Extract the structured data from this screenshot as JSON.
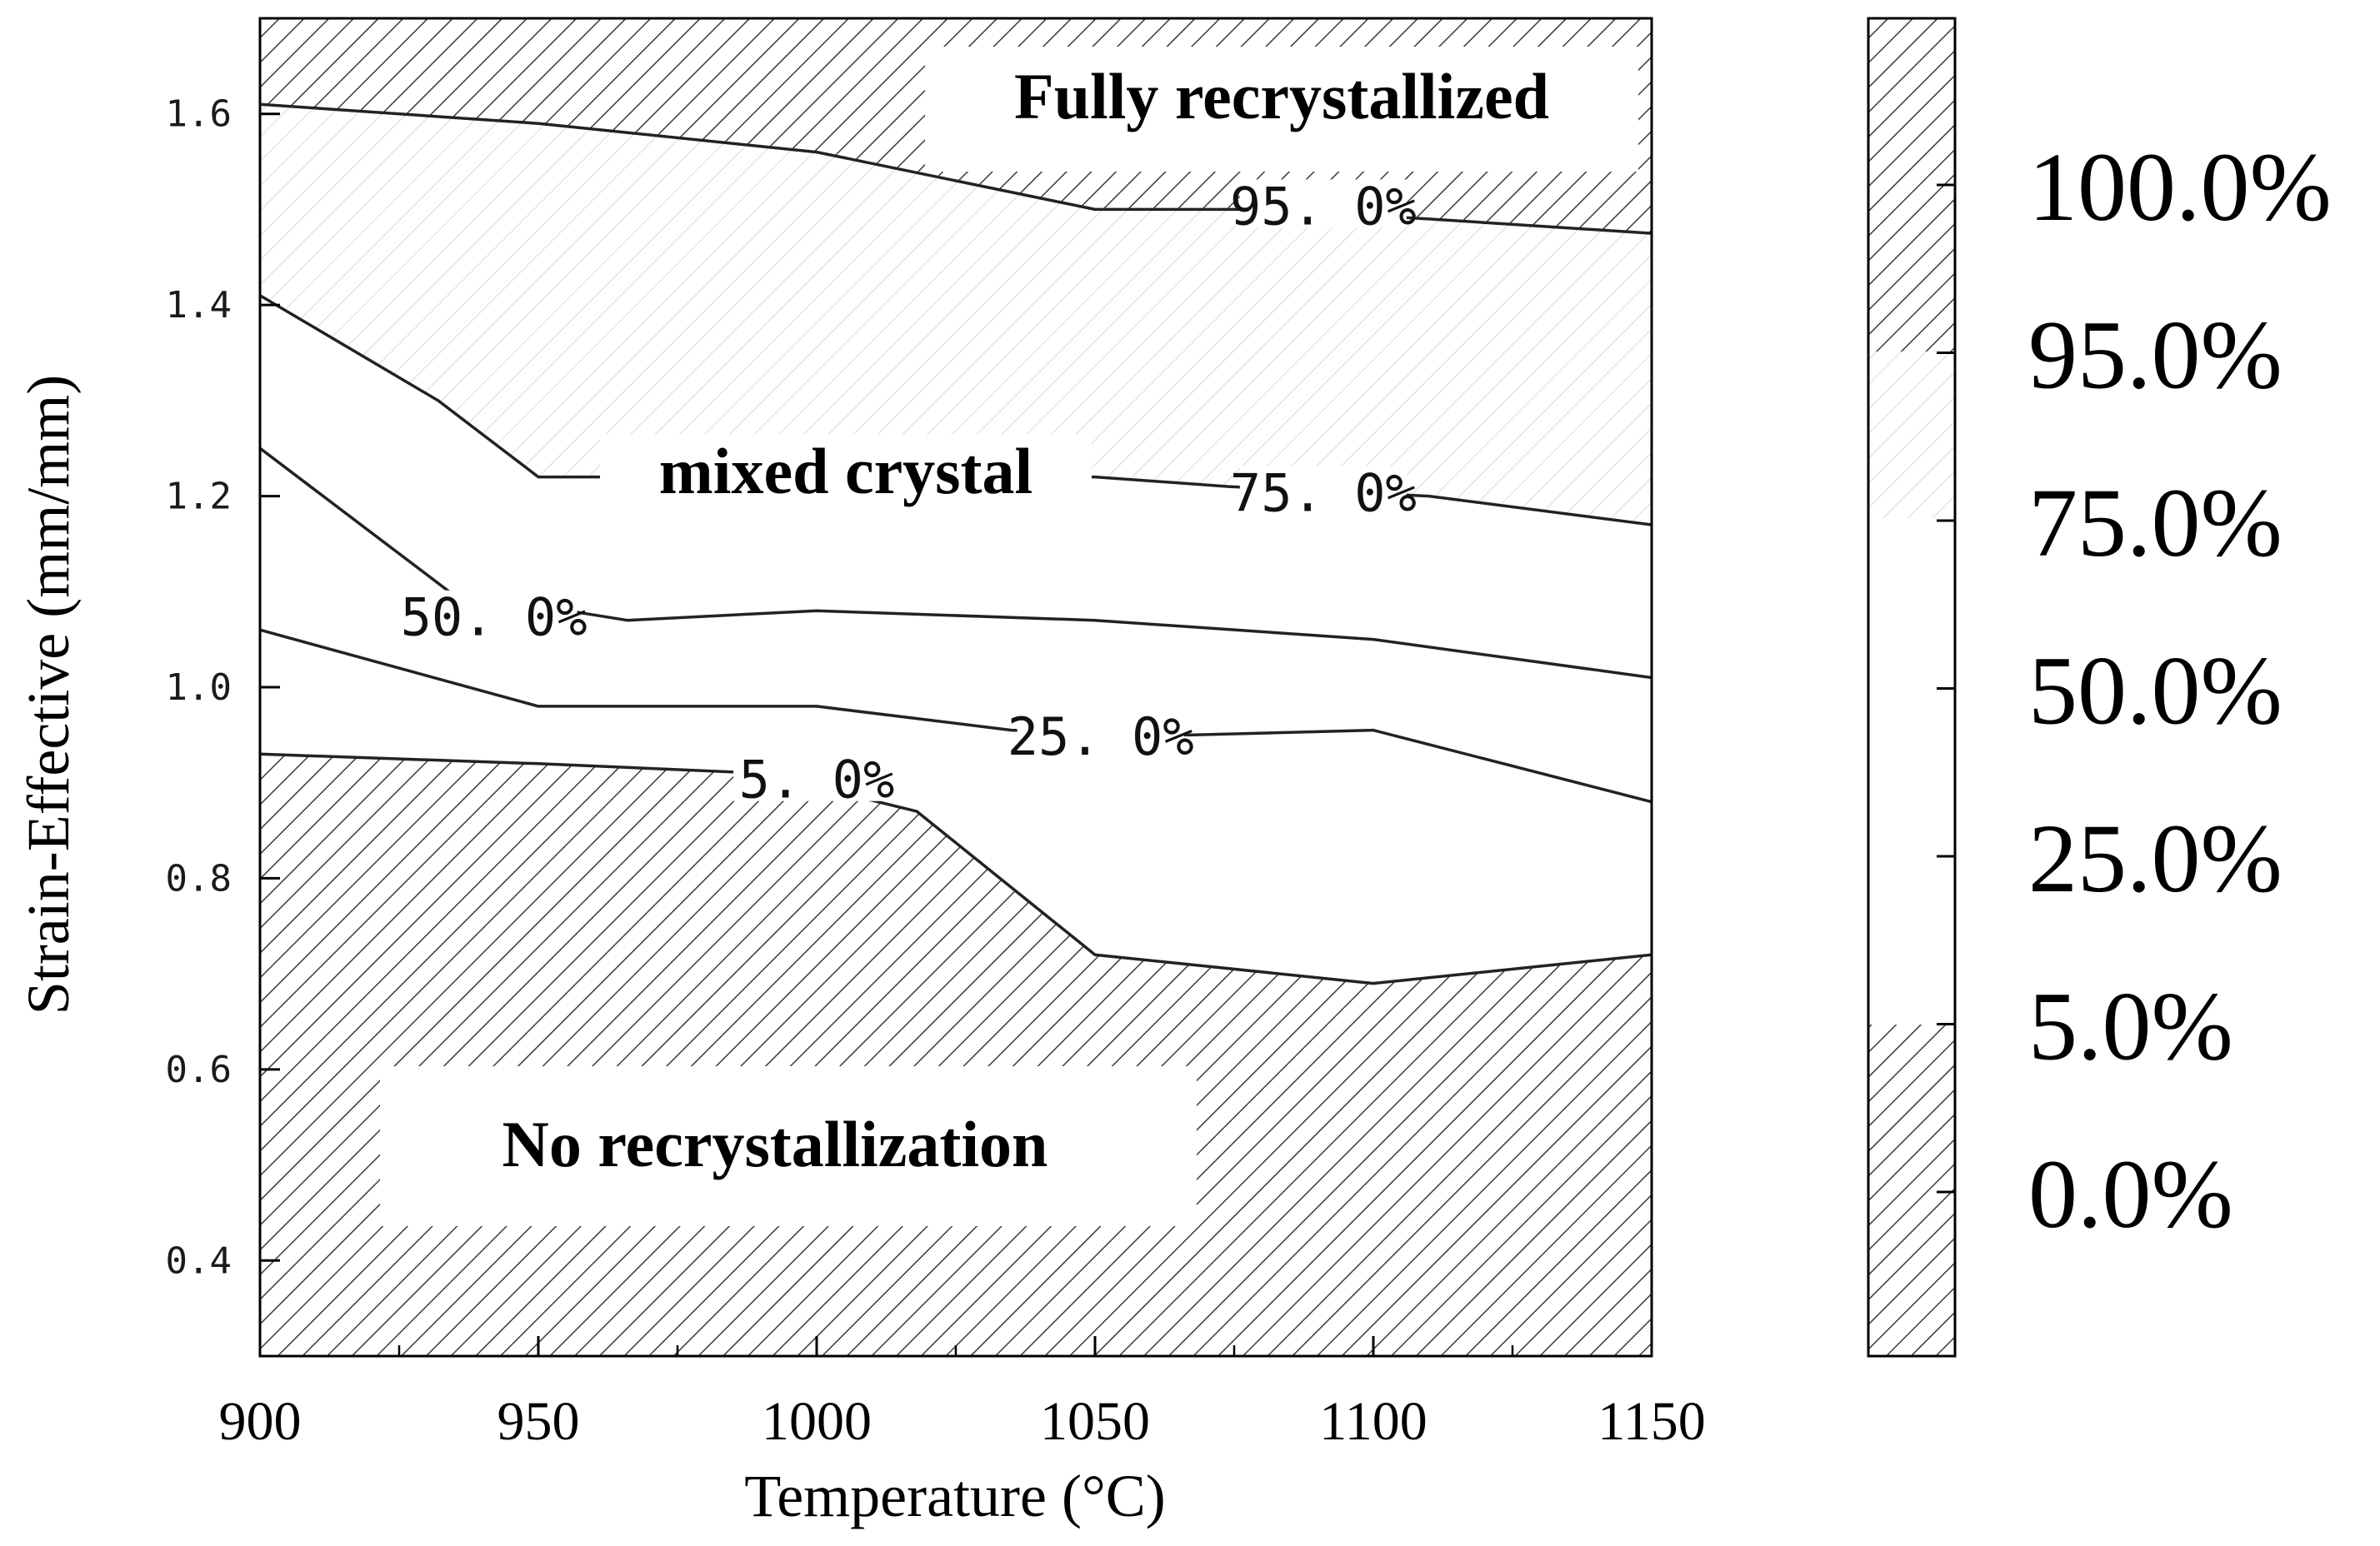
{
  "chart_data": {
    "type": "contour",
    "title": "",
    "xlabel": "Temperature (°C)",
    "ylabel": "Strain-Effective (mm/mm)",
    "xlim": [
      900,
      1150
    ],
    "ylim": [
      0.3,
      1.7
    ],
    "x_ticks": [
      900,
      950,
      1000,
      1050,
      1100,
      1150
    ],
    "x_tick_labels": [
      "900",
      "950",
      "1000",
      "1050",
      "1100",
      "1150"
    ],
    "y_ticks": [
      0.4,
      0.6,
      0.8,
      1.0,
      1.2,
      1.4,
      1.6
    ],
    "y_tick_labels": [
      "0.4",
      "0.6",
      "0.8",
      "1.0",
      "1.2",
      "1.4",
      "1.6"
    ],
    "series": [
      {
        "name": "5.0%",
        "label": "5. 0%",
        "label_at": [
          1000,
          0.9
        ],
        "points": [
          [
            900,
            0.93
          ],
          [
            950,
            0.92
          ],
          [
            990,
            0.91
          ],
          [
            1018,
            0.87
          ],
          [
            1050,
            0.72
          ],
          [
            1100,
            0.69
          ],
          [
            1150,
            0.72
          ]
        ]
      },
      {
        "name": "25.0%",
        "label": "25. 0%",
        "label_at": [
          1051,
          0.945
        ],
        "points": [
          [
            900,
            1.06
          ],
          [
            950,
            0.98
          ],
          [
            1000,
            0.98
          ],
          [
            1035,
            0.955
          ],
          [
            1067,
            0.95
          ],
          [
            1100,
            0.955
          ],
          [
            1150,
            0.88
          ]
        ]
      },
      {
        "name": "50.0%",
        "label": "50. 0%",
        "label_at": [
          942,
          1.07
        ],
        "points": [
          [
            900,
            1.25
          ],
          [
            934,
            1.1
          ],
          [
            966,
            1.07
          ],
          [
            1000,
            1.08
          ],
          [
            1050,
            1.07
          ],
          [
            1100,
            1.05
          ],
          [
            1150,
            1.01
          ]
        ]
      },
      {
        "name": "75.0%",
        "label": "75. 0%",
        "label_at": [
          1091,
          1.2
        ],
        "points": [
          [
            900,
            1.41
          ],
          [
            932,
            1.3
          ],
          [
            950,
            1.22
          ],
          [
            956,
            1.22
          ],
          [
            1050,
            1.22
          ],
          [
            1074,
            1.21
          ],
          [
            1110,
            1.2
          ],
          [
            1150,
            1.17
          ]
        ]
      },
      {
        "name": "95.0%",
        "label": "95. 0%",
        "label_at": [
          1091,
          1.5
        ],
        "points": [
          [
            900,
            1.61
          ],
          [
            950,
            1.59
          ],
          [
            1000,
            1.56
          ],
          [
            1050,
            1.5
          ],
          [
            1080,
            1.5
          ],
          [
            1110,
            1.49
          ],
          [
            1150,
            1.475
          ]
        ]
      }
    ],
    "annotations": [
      "Fully recrystallized",
      "mixed crystal",
      "No recrystallization"
    ],
    "legend": {
      "position": "right",
      "levels": [
        "100.0%",
        "95.0%",
        "75.0%",
        "50.0%",
        "25.0%",
        "5.0%",
        "0.0%"
      ]
    }
  },
  "colors": {
    "line": "#222222",
    "hatch": "#3a3a3a",
    "hatch_light": "#cfcfcf",
    "background": "#ffffff"
  }
}
